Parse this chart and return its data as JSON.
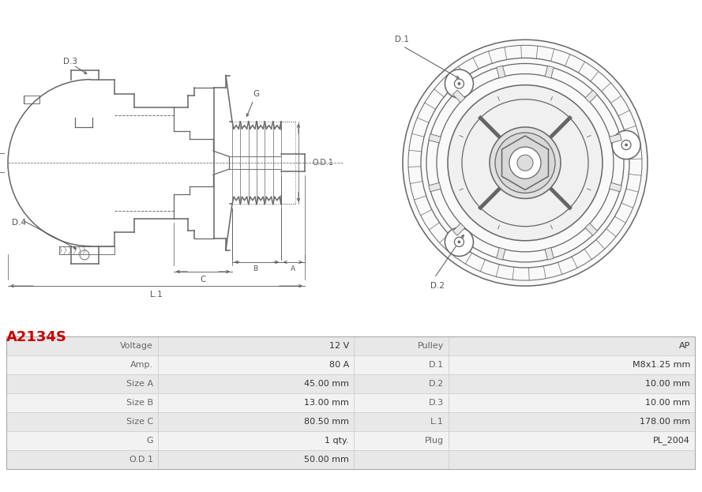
{
  "title": "A2134S",
  "title_color": "#cc0000",
  "bg_color": "#ffffff",
  "table_rows": [
    [
      "Voltage",
      "12 V",
      "Pulley",
      "AP"
    ],
    [
      "Amp.",
      "80 A",
      "D.1",
      "M8x1.25 mm"
    ],
    [
      "Size A",
      "45.00 mm",
      "D.2",
      "10.00 mm"
    ],
    [
      "Size B",
      "13.00 mm",
      "D.3",
      "10.00 mm"
    ],
    [
      "Size C",
      "80.50 mm",
      "L.1",
      "178.00 mm"
    ],
    [
      "G",
      "1 qty.",
      "Plug",
      "PL_2004"
    ],
    [
      "O.D.1",
      "50.00 mm",
      "",
      ""
    ]
  ],
  "line_color": "#666666",
  "dim_color": "#555555",
  "text_color": "#444444",
  "table_row_bg": [
    "#e8e8e8",
    "#f2f2f2"
  ],
  "border_color": "#cccccc"
}
